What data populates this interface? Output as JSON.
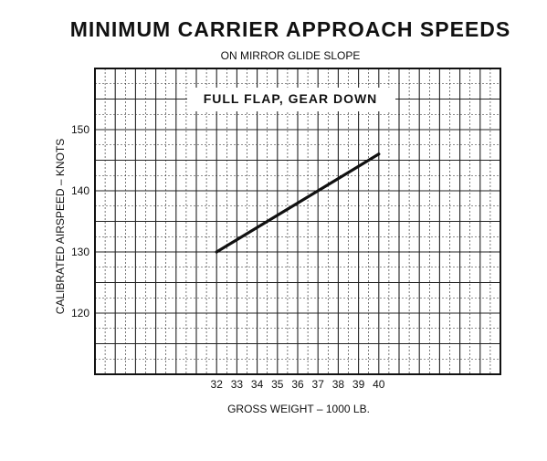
{
  "chart_data": {
    "type": "line",
    "title": "MINIMUM CARRIER APPROACH SPEEDS",
    "subtitle": "ON MIRROR GLIDE SLOPE",
    "annotation": "FULL FLAP, GEAR DOWN",
    "xlabel": "GROSS WEIGHT – 1000 LB.",
    "ylabel": "CALIBRATED AIRSPEED – KNOTS",
    "xlim": [
      26,
      46
    ],
    "ylim": [
      110,
      160
    ],
    "x_ticks": [
      32,
      33,
      34,
      35,
      36,
      37,
      38,
      39,
      40
    ],
    "y_ticks": [
      120,
      130,
      140,
      150
    ],
    "grid": true,
    "series": [
      {
        "x": [
          32,
          40
        ],
        "y": [
          130,
          146
        ]
      }
    ]
  }
}
